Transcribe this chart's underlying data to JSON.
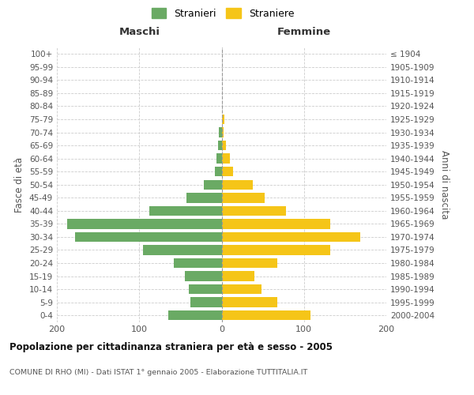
{
  "age_groups": [
    "0-4",
    "5-9",
    "10-14",
    "15-19",
    "20-24",
    "25-29",
    "30-34",
    "35-39",
    "40-44",
    "45-49",
    "50-54",
    "55-59",
    "60-64",
    "65-69",
    "70-74",
    "75-79",
    "80-84",
    "85-89",
    "90-94",
    "95-99",
    "100+"
  ],
  "birth_years": [
    "2000-2004",
    "1995-1999",
    "1990-1994",
    "1985-1989",
    "1980-1984",
    "1975-1979",
    "1970-1974",
    "1965-1969",
    "1960-1964",
    "1955-1959",
    "1950-1954",
    "1945-1949",
    "1940-1944",
    "1935-1939",
    "1930-1934",
    "1925-1929",
    "1920-1924",
    "1915-1919",
    "1910-1914",
    "1905-1909",
    "≤ 1904"
  ],
  "maschi": [
    65,
    38,
    40,
    45,
    58,
    95,
    178,
    188,
    88,
    43,
    22,
    8,
    6,
    4,
    3,
    0,
    0,
    0,
    0,
    0,
    0
  ],
  "femmine": [
    108,
    68,
    48,
    40,
    68,
    132,
    168,
    132,
    78,
    52,
    38,
    14,
    10,
    5,
    2,
    3,
    0,
    0,
    0,
    0,
    0
  ],
  "maschi_color": "#6aaa64",
  "femmine_color": "#f5c518",
  "background_color": "#ffffff",
  "grid_color": "#cccccc",
  "title": "Popolazione per cittadinanza straniera per età e sesso - 2005",
  "subtitle": "COMUNE DI RHO (MI) - Dati ISTAT 1° gennaio 2005 - Elaborazione TUTTITALIA.IT",
  "xlabel_left": "Maschi",
  "xlabel_right": "Femmine",
  "ylabel_left": "Fasce di età",
  "ylabel_right": "Anni di nascita",
  "legend_stranieri": "Stranieri",
  "legend_straniere": "Straniere",
  "xlim": 200,
  "bar_height": 0.75
}
